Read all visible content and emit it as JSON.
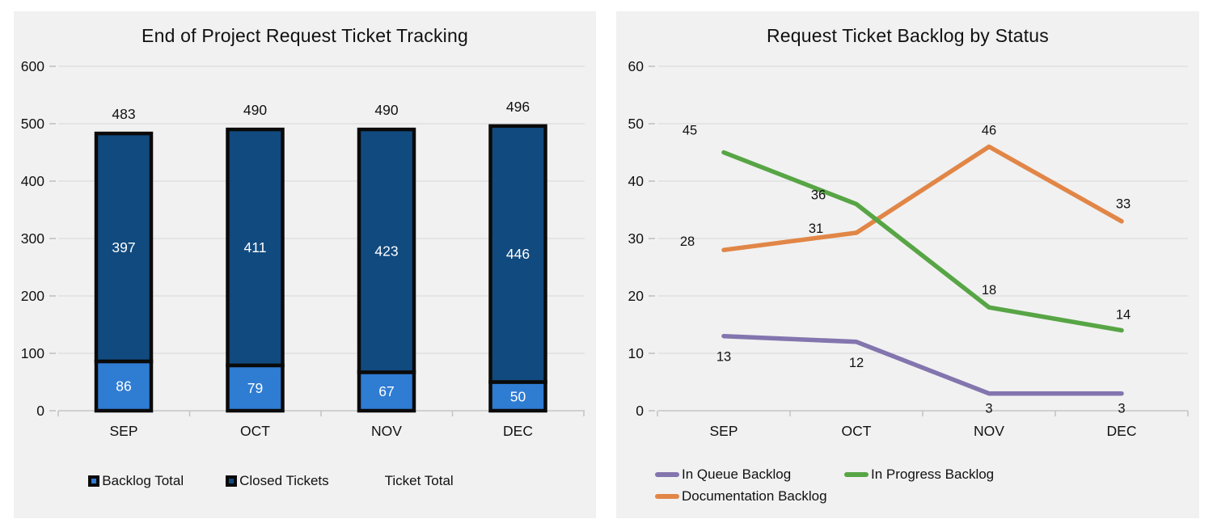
{
  "page": {
    "background": "#ffffff",
    "panel_background": "#f1f1f1",
    "gridline_color": "#e0e0e0",
    "baseline_color": "#c6c6c6",
    "text_color": "#111111"
  },
  "chart_data": [
    {
      "type": "bar",
      "stacked": true,
      "title": "End of Project Request Ticket Tracking",
      "categories": [
        "SEP",
        "OCT",
        "NOV",
        "DEC"
      ],
      "series": [
        {
          "name": "Backlog Total",
          "values": [
            86,
            79,
            67,
            50
          ],
          "color": "#2f7cd3"
        },
        {
          "name": "Closed Tickets",
          "values": [
            397,
            411,
            423,
            446
          ],
          "color": "#114a7f"
        }
      ],
      "totals": {
        "name": "Ticket Total",
        "values": [
          483,
          490,
          490,
          496
        ]
      },
      "bar_border_color": "#0a0a0a",
      "value_label_color": "#ffffff",
      "xlabel": "",
      "ylabel": "",
      "ylim": [
        0,
        600
      ],
      "ytick_step": 100,
      "grid": true,
      "legend_position": "bottom",
      "legend": [
        {
          "label": "Backlog Total",
          "color": "#2f7cd3",
          "marker": "square"
        },
        {
          "label": "Closed Tickets",
          "color": "#114a7f",
          "marker": "square"
        },
        {
          "label": "Ticket Total",
          "color": null,
          "marker": "none"
        }
      ]
    },
    {
      "type": "line",
      "title": "Request Ticket Backlog by Status",
      "categories": [
        "SEP",
        "OCT",
        "NOV",
        "DEC"
      ],
      "series": [
        {
          "name": "In Queue Backlog",
          "values": [
            13,
            12,
            3,
            3
          ],
          "color": "#8375ae"
        },
        {
          "name": "In Progress Backlog",
          "values": [
            45,
            36,
            18,
            14
          ],
          "color": "#57a545"
        },
        {
          "name": "Documentation Backlog",
          "values": [
            28,
            31,
            46,
            33
          ],
          "color": "#e18647"
        }
      ],
      "xlabel": "",
      "ylabel": "",
      "ylim": [
        0,
        60
      ],
      "ytick_step": 10,
      "grid": true,
      "legend_position": "bottom",
      "legend": [
        {
          "label": "In Queue Backlog",
          "color": "#8375ae",
          "marker": "line"
        },
        {
          "label": "In Progress Backlog",
          "color": "#57a545",
          "marker": "line"
        },
        {
          "label": "Documentation Backlog",
          "color": "#e18647",
          "marker": "line"
        }
      ]
    }
  ]
}
